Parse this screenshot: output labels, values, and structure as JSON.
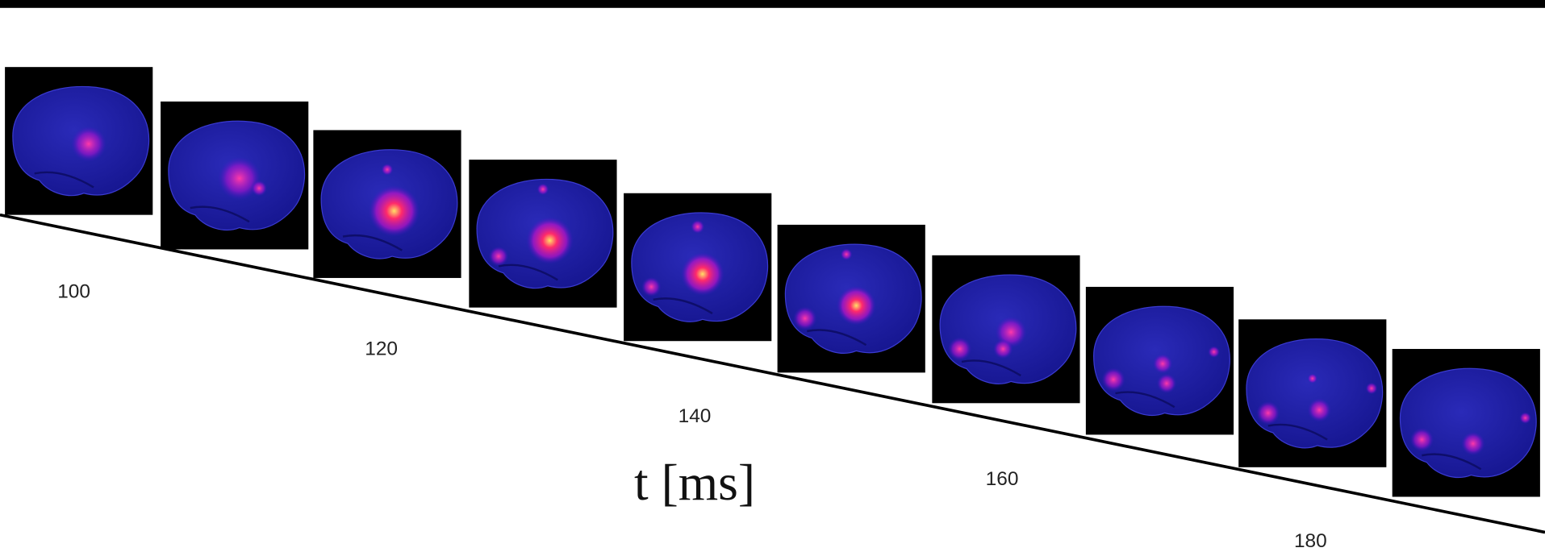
{
  "axis_label": "t [ms]",
  "time_labels": [
    "100",
    "120",
    "140",
    "160",
    "180"
  ]
}
